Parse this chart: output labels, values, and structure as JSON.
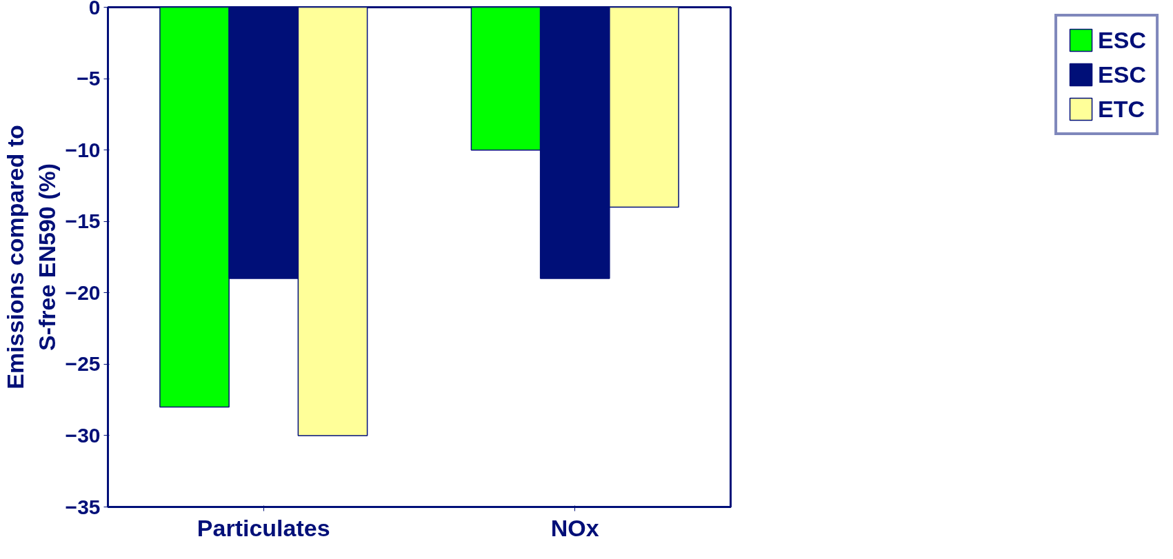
{
  "chart_data": {
    "type": "bar",
    "ylabel": "Emissions compared to\nS-free EN590 (%)",
    "categories": [
      "Particulates",
      "NOx"
    ],
    "series": [
      {
        "name": "ESC",
        "color": "#00ff00",
        "values": [
          -28,
          -10
        ]
      },
      {
        "name": "ESC",
        "color": "#000f78",
        "values": [
          -19,
          -19
        ]
      },
      {
        "name": "ETC",
        "color": "#ffff99",
        "values": [
          -30,
          -14
        ]
      }
    ],
    "ylim": [
      -35,
      0
    ],
    "yticks": [
      -35,
      -30,
      -25,
      -20,
      -15,
      -10,
      -5,
      0
    ],
    "grid": false,
    "legend": "right"
  }
}
